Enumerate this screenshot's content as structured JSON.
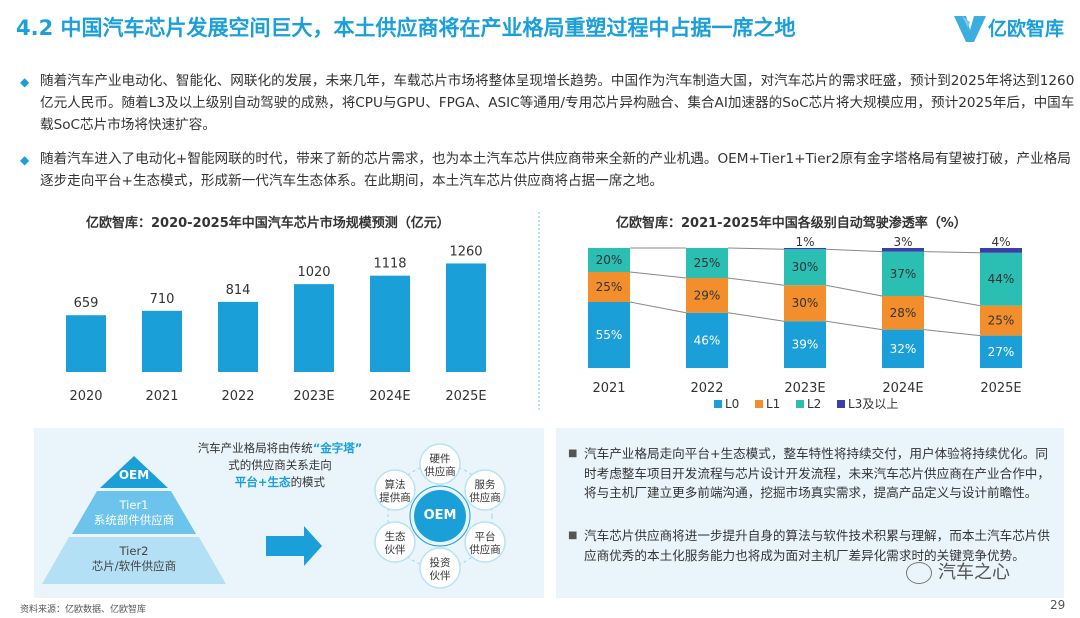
{
  "header": {
    "title": "4.2 中国汽车芯片发展空间巨大，本土供应商将在产业格局重塑过程中占据一席之地",
    "logo_text": "亿欧智库"
  },
  "bullets": [
    "随着汽车产业电动化、智能化、网联化的发展，未来几年，车载芯片市场将整体呈现增长趋势。中国作为汽车制造大国，对汽车芯片的需求旺盛，预计到2025年将达到1260亿元人民币。随着L3及以上级别自动驾驶的成熟，将CPU与GPU、FPGA、ASIC等通用/专用芯片异构融合、集合AI加速器的SoC芯片将大规模应用，预计2025年后，中国车载SoC芯片市场将快速扩容。",
    "随着汽车进入了电动化+智能网联的时代，带来了新的芯片需求，也为本土汽车芯片供应商带来全新的产业机遇。OEM+Tier1+Tier2原有金字塔格局有望被打破，产业格局逐步走向平台+生态模式，形成新一代汽车生态体系。在此期间，本土汽车芯片供应商将占据一席之地。"
  ],
  "chart_data": [
    {
      "type": "bar",
      "title": "亿欧智库：2020-2025年中国汽车芯片市场规模预测（亿元）",
      "categories": [
        "2020",
        "2021",
        "2022",
        "2023E",
        "2024E",
        "2025E"
      ],
      "values": [
        659,
        710,
        814,
        1020,
        1118,
        1260
      ],
      "value_labels": [
        "659",
        "710",
        "814",
        "1020",
        "1118",
        "1260"
      ],
      "color": "#1a9fd9",
      "ylim": [
        0,
        1300
      ]
    },
    {
      "type": "bar",
      "stacked": true,
      "title": "亿欧智库：2021-2025年中国各级别自动驾驶渗透率（%）",
      "categories": [
        "2021",
        "2022",
        "2023E",
        "2024E",
        "2025E"
      ],
      "series": [
        {
          "name": "L0",
          "color": "#1a9fd9",
          "values": [
            55,
            46,
            39,
            32,
            27
          ],
          "labels": [
            "55%",
            "46%",
            "39%",
            "32%",
            "27%"
          ]
        },
        {
          "name": "L1",
          "color": "#f28e2b",
          "values": [
            25,
            29,
            30,
            28,
            25
          ],
          "labels": [
            "25%",
            "29%",
            "30%",
            "28%",
            "25%"
          ]
        },
        {
          "name": "L2",
          "color": "#2bbfb3",
          "values": [
            20,
            25,
            30,
            37,
            44
          ],
          "labels": [
            "20%",
            "25%",
            "30%",
            "37%",
            "44%"
          ]
        },
        {
          "name": "L3及以上",
          "color": "#3a3fa8",
          "values": [
            0,
            0,
            1,
            3,
            4
          ],
          "labels": [
            "",
            "",
            "1%",
            "3%",
            "4%"
          ]
        }
      ],
      "legend_position": "bottom",
      "ylim": [
        0,
        100
      ]
    }
  ],
  "pyramid": {
    "caption_line1_pre": "汽车产业格局将由传统",
    "caption_highlight1": "“金字塔”",
    "caption_line2": "式的供应商关系走向",
    "caption_highlight2": "平台+生态",
    "caption_line3_post": "的模式",
    "top": "OEM",
    "mid_line1": "Tier1",
    "mid_line2": "系统部件供应商",
    "bottom_line1": "Tier2",
    "bottom_line2": "芯片/软件供应商"
  },
  "ecosystem": {
    "center": "OEM",
    "nodes": [
      {
        "line1": "硬件",
        "line2": "供应商"
      },
      {
        "line1": "服务",
        "line2": "供应商"
      },
      {
        "line1": "平台",
        "line2": "供应商"
      },
      {
        "line1": "投资",
        "line2": "伙伴"
      },
      {
        "line1": "生态",
        "line2": "伙伴"
      },
      {
        "line1": "算法",
        "line2": "提供商"
      }
    ]
  },
  "right_points": [
    "汽车产业格局走向平台+生态模式，整车特性将持续交付，用户体验将持续优化。同时考虑整车项目开发流程与芯片设计开发流程，未来汽车芯片供应商在产业合作中，将与主机厂建立更多前端沟通，挖掘市场真实需求，提高产品定义与设计前瞻性。",
    "汽车芯片供应商将进一步提升自身的算法与软件技术积累与理解，而本土汽车芯片供应商优秀的本土化服务能力也将成为面对主机厂差异化需求时的关键竞争优势。"
  ],
  "footer": {
    "source": "资料来源：亿欧数据、亿欧智库",
    "page": "29",
    "watermark": "汽车之心"
  },
  "colors": {
    "accent": "#1a9fd9",
    "panel_bg": "#eaf5fb",
    "highlight_orange": "#f28e2b"
  }
}
